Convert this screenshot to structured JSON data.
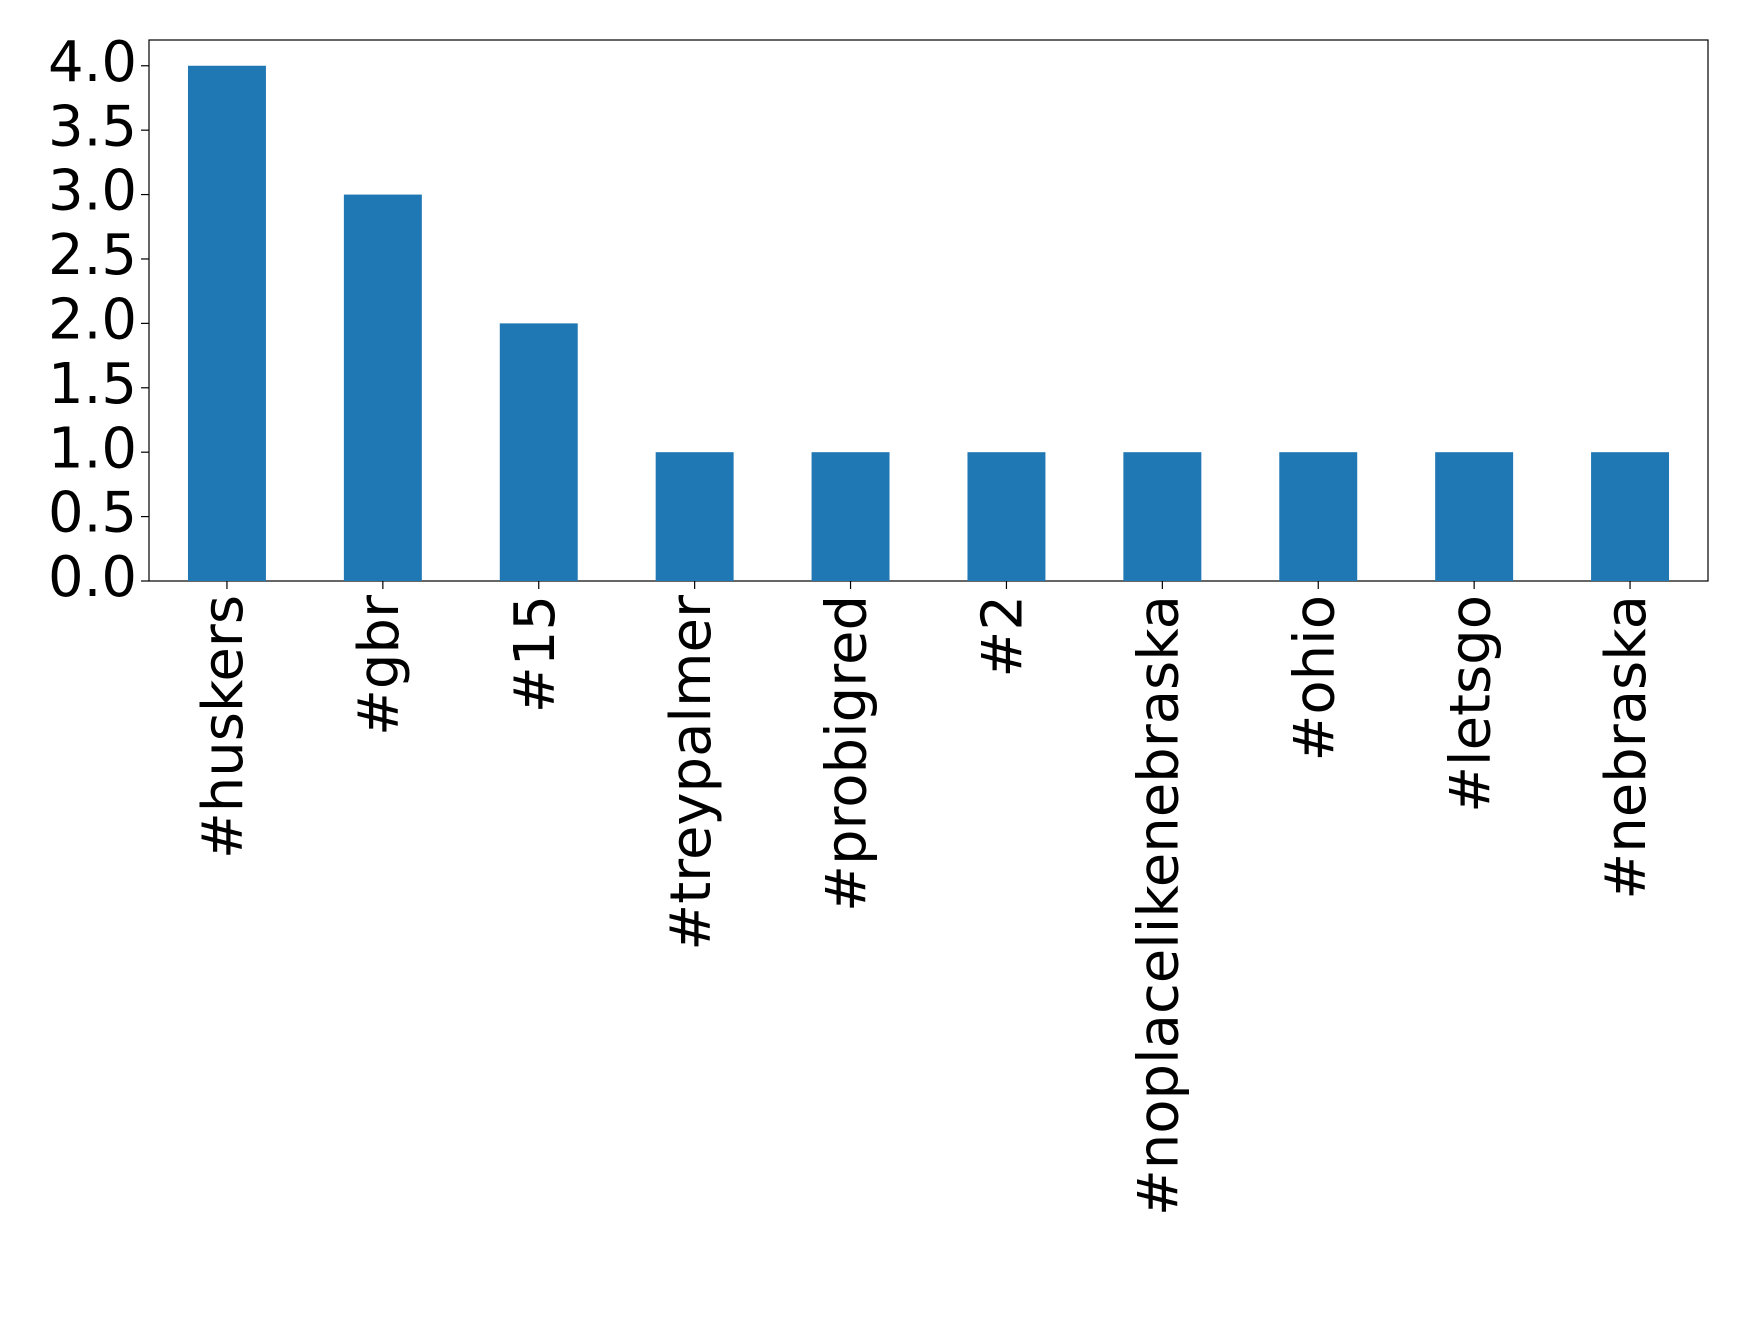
{
  "chart_data": {
    "type": "bar",
    "categories": [
      "#huskers",
      "#gbr",
      "#15",
      "#treypalmer",
      "#probigred",
      "#2",
      "#noplacelikenebraska",
      "#ohio",
      "#letsgo",
      "#nebraska"
    ],
    "values": [
      4,
      3,
      2,
      1,
      1,
      1,
      1,
      1,
      1,
      1
    ],
    "color": "#1f77b4",
    "ylim": [
      0,
      4.2
    ],
    "yticks": [
      {
        "value": 0,
        "label": "0.0"
      },
      {
        "value": 0.5,
        "label": "0.5"
      },
      {
        "value": 1,
        "label": "1.0"
      },
      {
        "value": 1.5,
        "label": "1.5"
      },
      {
        "value": 2,
        "label": "2.0"
      },
      {
        "value": 2.5,
        "label": "2.5"
      },
      {
        "value": 3,
        "label": "3.0"
      },
      {
        "value": 3.5,
        "label": "3.5"
      },
      {
        "value": 4,
        "label": "4.0"
      }
    ],
    "grid": false
  }
}
